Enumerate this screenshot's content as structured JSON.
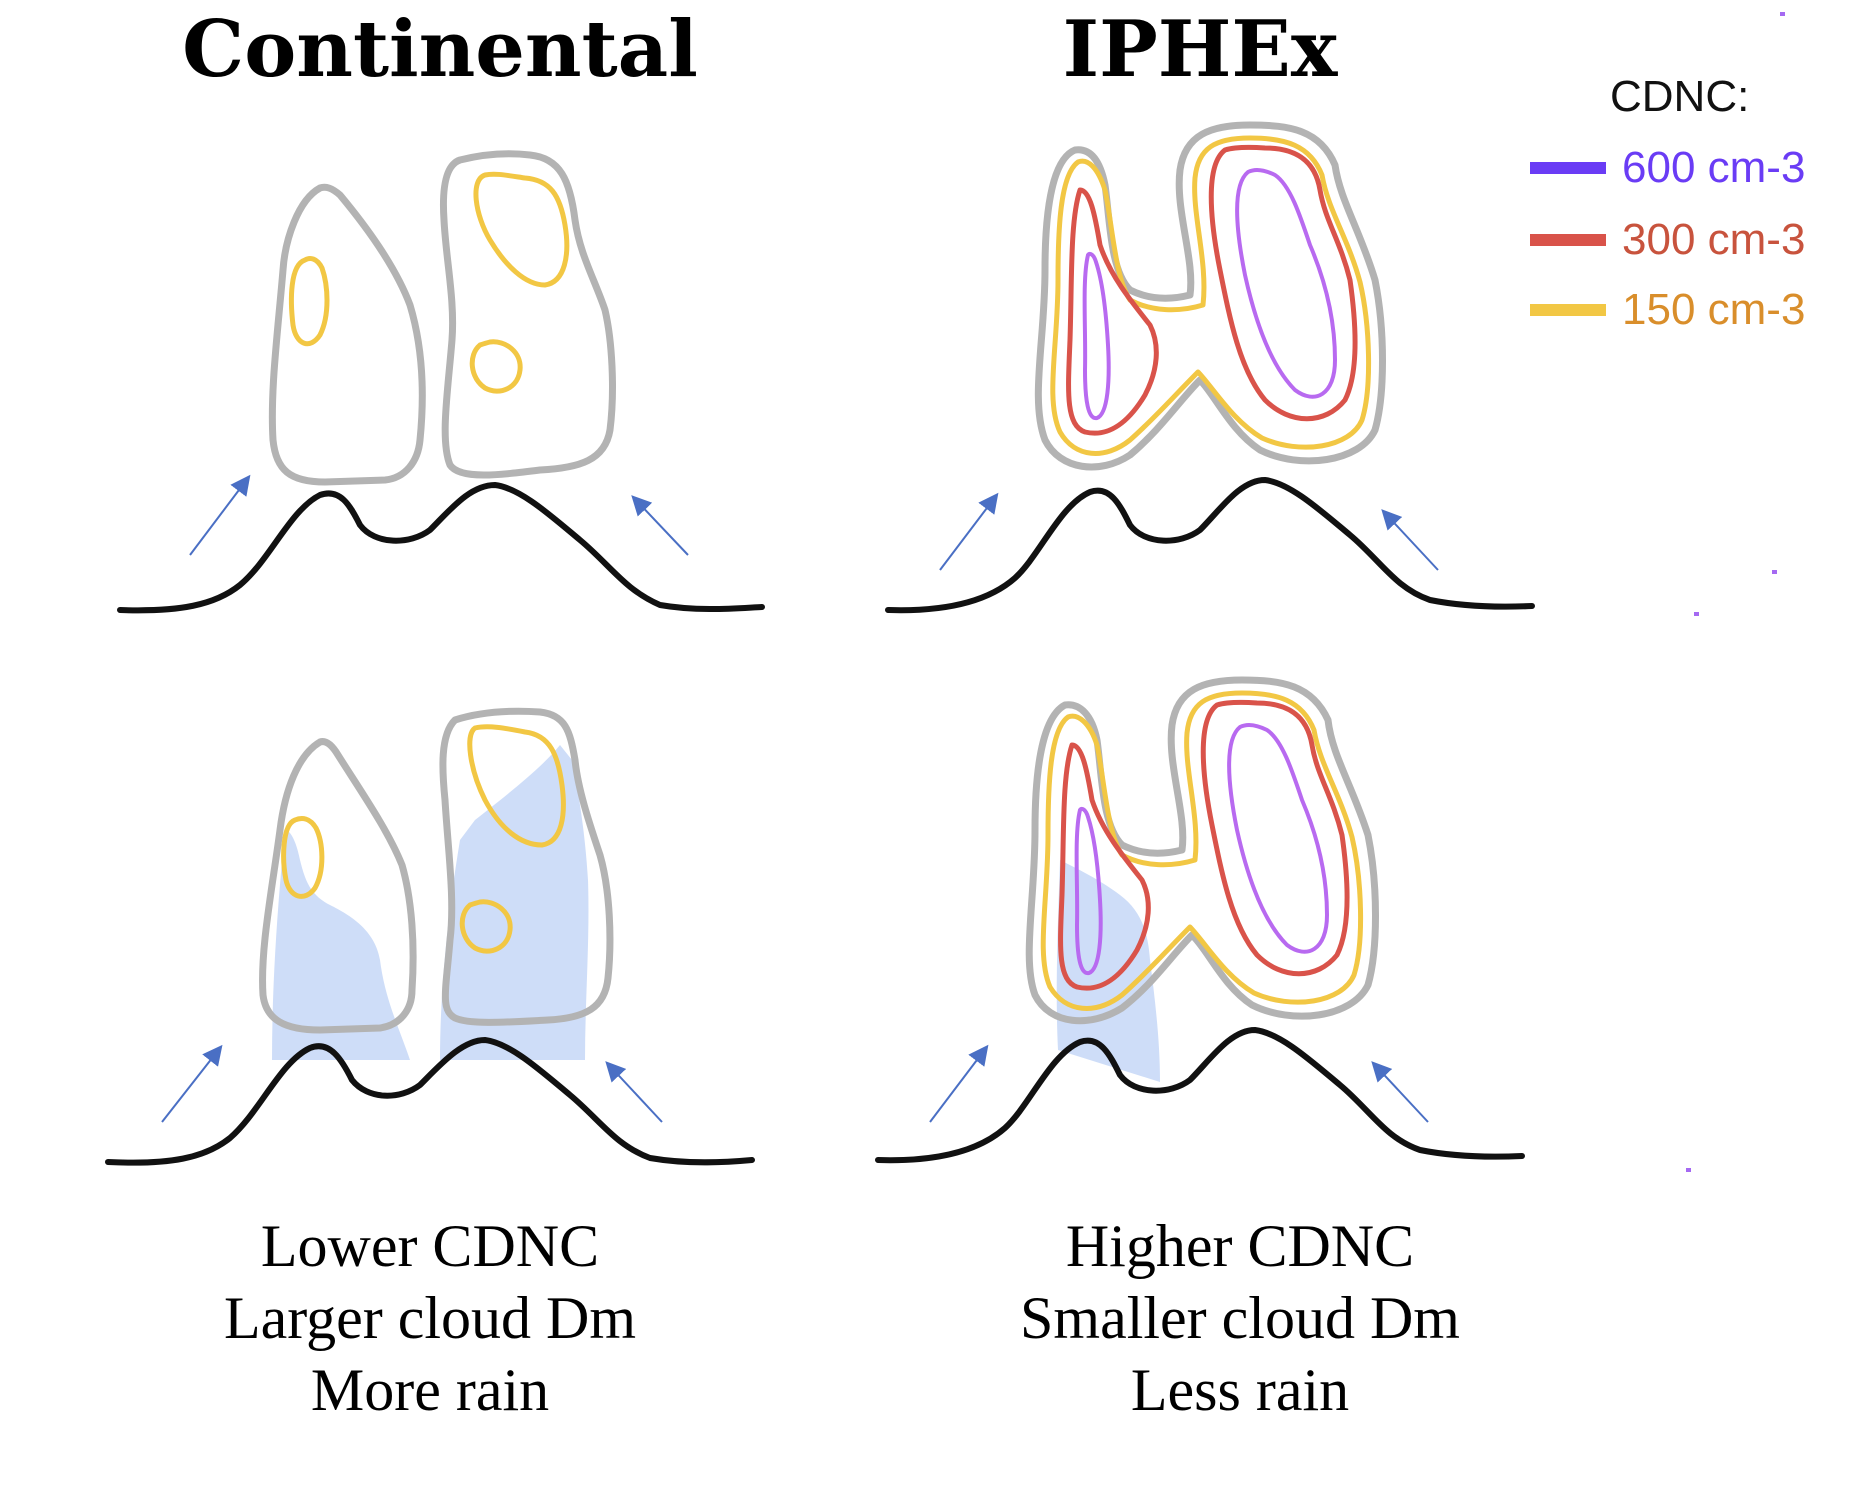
{
  "titles": {
    "left": "Continental",
    "right": "IPHEx"
  },
  "legend": {
    "title": "CDNC:",
    "items": [
      {
        "label": "600 cm-3",
        "line_color": "#6a3cf5",
        "text_color": "#6a3cf5"
      },
      {
        "label": "300 cm-3",
        "line_color": "#d9534a",
        "text_color": "#c8533d"
      },
      {
        "label": "150 cm-3",
        "line_color": "#f2c744",
        "text_color": "#d98e2b"
      }
    ]
  },
  "captions": {
    "left": [
      "Lower CDNC",
      "Larger cloud Dm",
      "More rain"
    ],
    "right": [
      "Higher CDNC",
      "Smaller cloud Dm",
      "Less rain"
    ]
  },
  "colors": {
    "cloud_outline": "#b3b3b3",
    "terrain": "#111111",
    "wind_arrow": "#4a6fc4",
    "rain_fill": "#c9d9f7"
  }
}
